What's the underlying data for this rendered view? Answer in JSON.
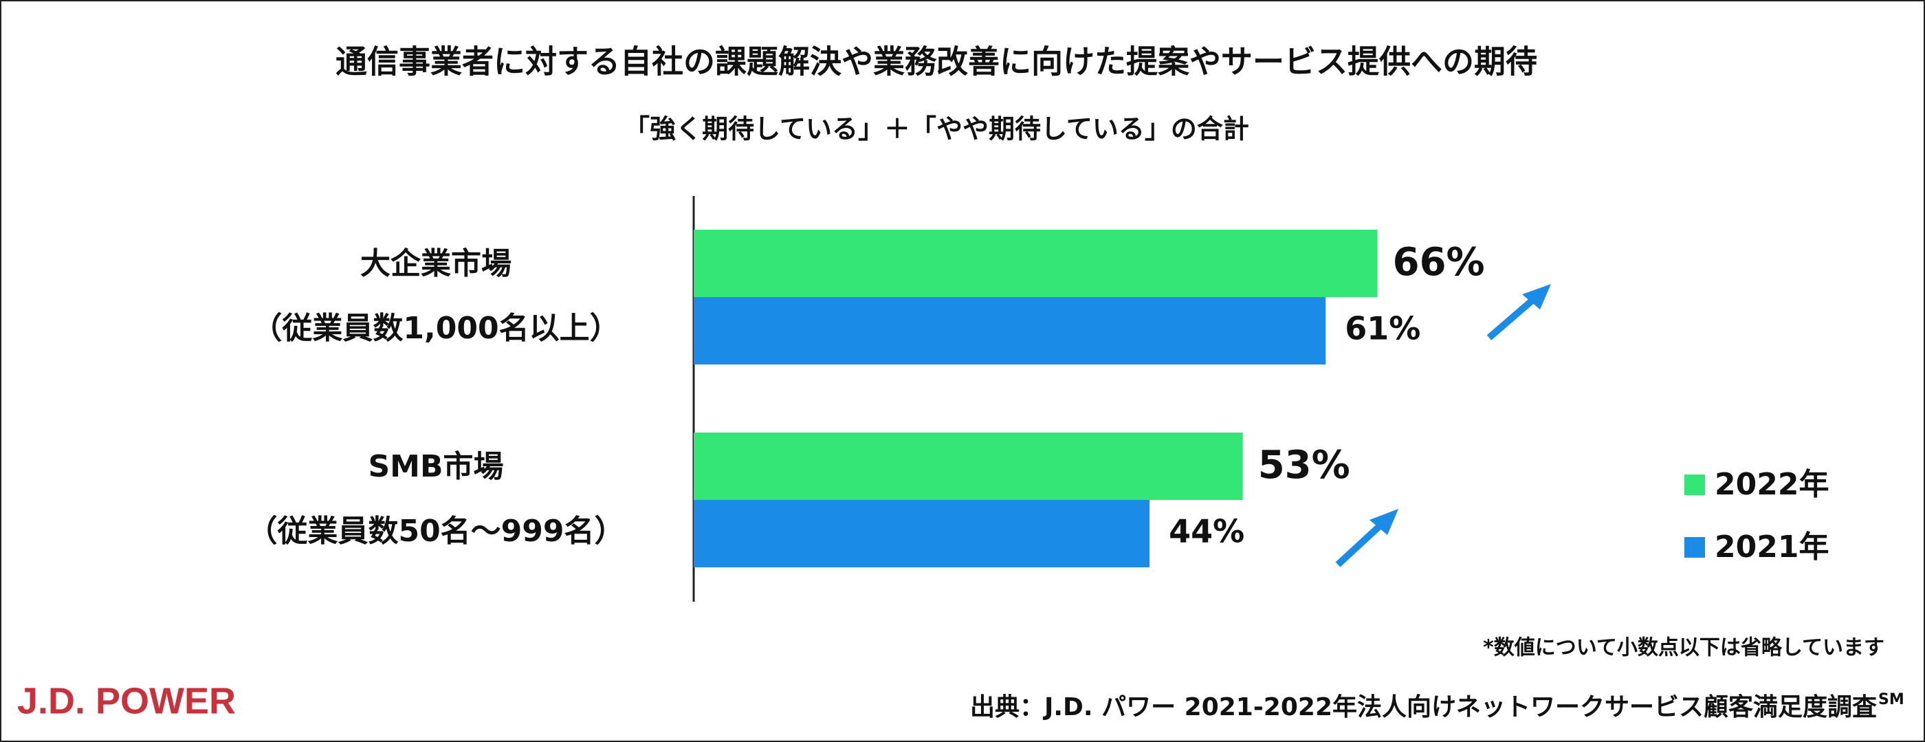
{
  "chart_data": {
    "type": "bar",
    "orientation": "horizontal",
    "title": "通信事業者に対する自社の課題解決や業務改善に向けた提案やサービス提供への期待",
    "subtitle": "「強く期待している」＋「やや期待している」の合計",
    "categories": [
      [
        "大企業市場",
        "（従業員数1,000名以上）"
      ],
      [
        "SMB市場",
        "（従業員数50名～999名）"
      ]
    ],
    "series": [
      {
        "name": "2022年",
        "color": "#33e676",
        "values": [
          66,
          53
        ],
        "value_labels": [
          "66%",
          "53%"
        ]
      },
      {
        "name": "2021年",
        "color": "#1a8ce8",
        "values": [
          61,
          44
        ],
        "value_labels": [
          "61%",
          "44%"
        ]
      }
    ],
    "xlim": [
      0,
      100
    ],
    "legend": "right",
    "footnote": "*数値について小数点以下は省略しています",
    "source": "出典：J.D. パワー 2021-2022年法人向けネットワークサービス顧客満足度調査",
    "source_mark": "SM",
    "logo": "J.D. POWER"
  }
}
